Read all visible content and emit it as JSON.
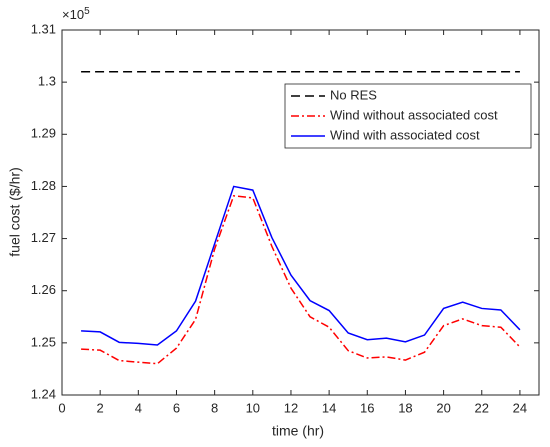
{
  "chart_data": {
    "type": "line",
    "xlabel": "time (hr)",
    "ylabel": "fuel cost ($/hr)",
    "y_multiplier_base": "×10",
    "y_multiplier_exponent": "5",
    "xlim": [
      0,
      25
    ],
    "xticks": [
      0,
      2,
      4,
      6,
      8,
      10,
      12,
      14,
      16,
      18,
      20,
      22,
      24
    ],
    "ylim": [
      1.24,
      1.31
    ],
    "yticks": [
      1.24,
      1.25,
      1.26,
      1.27,
      1.28,
      1.29,
      1.3,
      1.31
    ],
    "grid": false,
    "legend": "upper right",
    "x": [
      1,
      2,
      3,
      4,
      5,
      6,
      7,
      8,
      9,
      10,
      11,
      12,
      13,
      14,
      15,
      16,
      17,
      18,
      19,
      20,
      21,
      22,
      23,
      24
    ],
    "series": [
      {
        "name": "No RES",
        "color": "#000000",
        "dash": "dashed",
        "values": [
          1.302,
          1.302,
          1.302,
          1.302,
          1.302,
          1.302,
          1.302,
          1.302,
          1.302,
          1.302,
          1.302,
          1.302,
          1.302,
          1.302,
          1.302,
          1.302,
          1.302,
          1.302,
          1.302,
          1.302,
          1.302,
          1.302,
          1.302,
          1.302
        ]
      },
      {
        "name": "Wind without associated cost",
        "color": "#ff0000",
        "dash": "dashdot",
        "values": [
          1.2488,
          1.2486,
          1.2466,
          1.2463,
          1.246,
          1.249,
          1.2545,
          1.268,
          1.2782,
          1.2778,
          1.2685,
          1.2605,
          1.255,
          1.253,
          1.2485,
          1.2471,
          1.2473,
          1.2467,
          1.2482,
          1.2533,
          1.2546,
          1.2533,
          1.253,
          1.2492
        ]
      },
      {
        "name": "Wind with associated cost",
        "color": "#0000ff",
        "dash": "solid",
        "values": [
          1.2523,
          1.2521,
          1.2501,
          1.2499,
          1.2496,
          1.2523,
          1.258,
          1.269,
          1.28,
          1.2793,
          1.2702,
          1.263,
          1.2581,
          1.2562,
          1.2519,
          1.2506,
          1.2509,
          1.2502,
          1.2515,
          1.2566,
          1.2578,
          1.2566,
          1.2563,
          1.2525
        ]
      }
    ]
  }
}
